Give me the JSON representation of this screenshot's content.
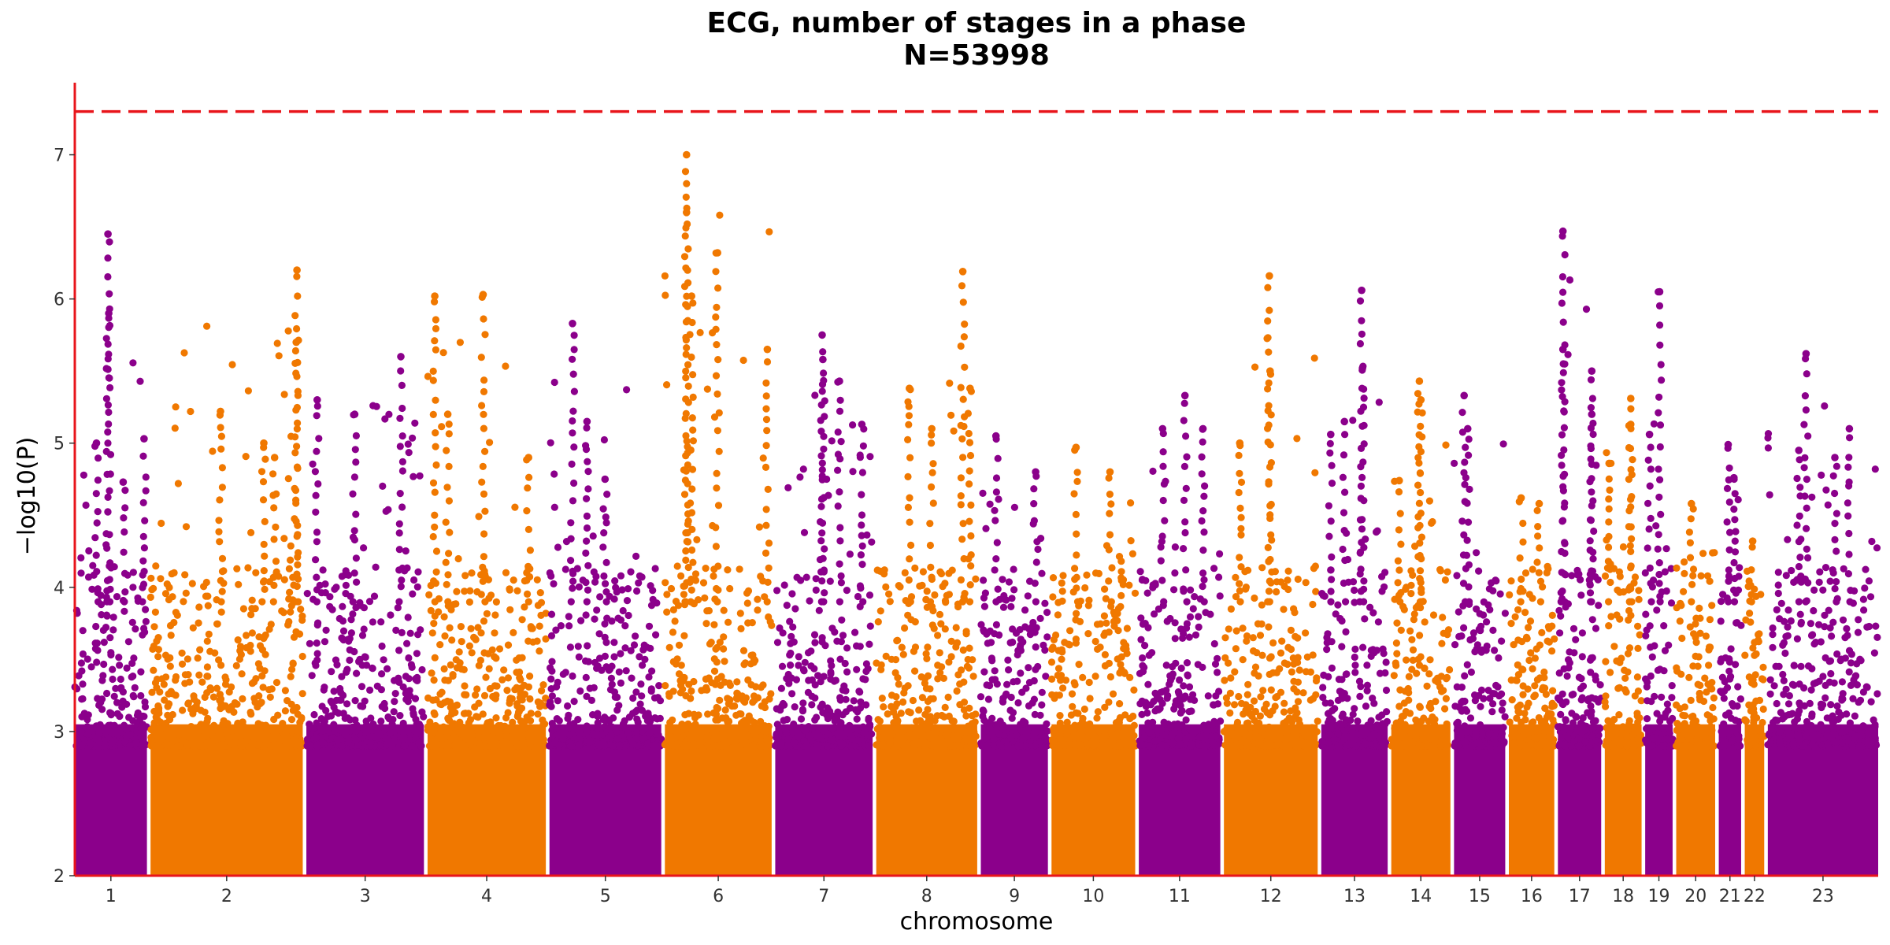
{
  "chart_data": {
    "type": "scatter",
    "title": "ECG, number of stages in a phase",
    "subtitle": "N=53998",
    "xlabel": "chromosome",
    "ylabel": "−log10(P)",
    "ylim": [
      2,
      7.5
    ],
    "y_ticks": [
      2,
      3,
      4,
      5,
      6,
      7
    ],
    "significance_threshold": 7.3,
    "colors": {
      "odd": "#8B008B",
      "even": "#F07800",
      "threshold": "#E8151B",
      "axis": "#E8151B"
    },
    "grid": false,
    "legend": "none",
    "chromosomes": [
      {
        "label": "1",
        "start": 0,
        "end": 100,
        "max": 6.45,
        "peaks": [
          [
            46,
            6.45
          ],
          [
            47,
            5.9
          ],
          [
            30,
            5.0
          ],
          [
            96,
            5.03
          ],
          [
            67,
            4.73
          ]
        ]
      },
      {
        "label": "2",
        "start": 105,
        "end": 316,
        "max": 6.2,
        "peaks": [
          [
            202,
            5.22
          ],
          [
            262,
            5.0
          ],
          [
            308,
            6.2
          ],
          [
            307,
            5.7
          ],
          [
            277,
            4.9
          ]
        ]
      },
      {
        "label": "3",
        "start": 321,
        "end": 484,
        "max": 5.6,
        "peaks": [
          [
            336,
            5.3
          ],
          [
            388,
            5.2
          ],
          [
            452,
            5.6
          ]
        ]
      },
      {
        "label": "4",
        "start": 489,
        "end": 653,
        "max": 6.03,
        "peaks": [
          [
            499,
            6.02
          ],
          [
            517,
            5.2
          ],
          [
            566,
            6.03
          ],
          [
            629,
            4.9
          ]
        ]
      },
      {
        "label": "5",
        "start": 658,
        "end": 813,
        "max": 5.83,
        "peaks": [
          [
            690,
            5.83
          ],
          [
            710,
            5.15
          ],
          [
            735,
            4.75
          ]
        ]
      },
      {
        "label": "6",
        "start": 818,
        "end": 966,
        "max": 7.0,
        "peaks": [
          [
            848,
            7.0
          ],
          [
            848,
            6.6
          ],
          [
            855,
            6.02
          ],
          [
            891,
            6.32
          ],
          [
            960,
            5.65
          ]
        ]
      },
      {
        "label": "7",
        "start": 971,
        "end": 1106,
        "max": 5.75,
        "peaks": [
          [
            1036,
            5.75
          ],
          [
            1037,
            5.58
          ],
          [
            1060,
            5.43
          ],
          [
            1091,
            5.13
          ]
        ]
      },
      {
        "label": "8",
        "start": 1111,
        "end": 1251,
        "max": 6.19,
        "peaks": [
          [
            1157,
            5.38
          ],
          [
            1188,
            5.1
          ],
          [
            1231,
            6.19
          ],
          [
            1241,
            5.38
          ]
        ]
      },
      {
        "label": "9",
        "start": 1256,
        "end": 1349,
        "max": 5.05,
        "peaks": [
          [
            1277,
            5.05
          ],
          [
            1332,
            4.8
          ]
        ]
      },
      {
        "label": "10",
        "start": 1354,
        "end": 1470,
        "max": 4.97,
        "peaks": [
          [
            1388,
            4.97
          ],
          [
            1435,
            4.8
          ]
        ]
      },
      {
        "label": "11",
        "start": 1475,
        "end": 1588,
        "max": 5.33,
        "peaks": [
          [
            1508,
            5.1
          ],
          [
            1539,
            5.33
          ],
          [
            1564,
            5.1
          ]
        ]
      },
      {
        "label": "12",
        "start": 1593,
        "end": 1723,
        "max": 6.16,
        "peaks": [
          [
            1656,
            6.16
          ],
          [
            1657,
            5.5
          ],
          [
            1615,
            5.0
          ]
        ]
      },
      {
        "label": "13",
        "start": 1728,
        "end": 1820,
        "max": 6.06,
        "peaks": [
          [
            1784,
            6.06
          ],
          [
            1785,
            5.52
          ],
          [
            1741,
            5.06
          ],
          [
            1760,
            5.15
          ]
        ]
      },
      {
        "label": "14",
        "start": 1825,
        "end": 1907,
        "max": 5.43,
        "peaks": [
          [
            1836,
            4.74
          ],
          [
            1864,
            5.43
          ],
          [
            1866,
            5.3
          ]
        ]
      },
      {
        "label": "15",
        "start": 1912,
        "end": 1983,
        "max": 5.33,
        "peaks": [
          [
            1926,
            5.33
          ],
          [
            1931,
            5.1
          ]
        ]
      },
      {
        "label": "16",
        "start": 1988,
        "end": 2051,
        "max": 4.62,
        "peaks": [
          [
            2005,
            4.62
          ],
          [
            2030,
            4.58
          ]
        ]
      },
      {
        "label": "17",
        "start": 2056,
        "end": 2116,
        "max": 6.47,
        "peaks": [
          [
            2063,
            6.47
          ],
          [
            2063,
            5.65
          ],
          [
            2103,
            5.5
          ],
          [
            2103,
            5.2
          ]
        ]
      },
      {
        "label": "18",
        "start": 2121,
        "end": 2172,
        "max": 5.31,
        "peaks": [
          [
            2127,
            4.86
          ],
          [
            2157,
            5.31
          ],
          [
            2157,
            5.13
          ]
        ]
      },
      {
        "label": "19",
        "start": 2177,
        "end": 2215,
        "max": 6.05,
        "peaks": [
          [
            2197,
            6.05
          ],
          [
            2183,
            5.06
          ]
        ]
      },
      {
        "label": "20",
        "start": 2220,
        "end": 2274,
        "max": 4.58,
        "peaks": [
          [
            2241,
            4.58
          ]
        ]
      },
      {
        "label": "21",
        "start": 2279,
        "end": 2310,
        "max": 4.99,
        "peaks": [
          [
            2292,
            4.99
          ],
          [
            2300,
            4.76
          ]
        ]
      },
      {
        "label": "22",
        "start": 2315,
        "end": 2342,
        "max": 4.32,
        "peaks": [
          [
            2326,
            4.32
          ]
        ]
      },
      {
        "label": "23",
        "start": 2347,
        "end": 2500,
        "max": 5.62,
        "peaks": [
          [
            2400,
            5.62
          ],
          [
            2390,
            4.95
          ],
          [
            2460,
            5.1
          ],
          [
            2440,
            4.9
          ]
        ]
      }
    ]
  }
}
